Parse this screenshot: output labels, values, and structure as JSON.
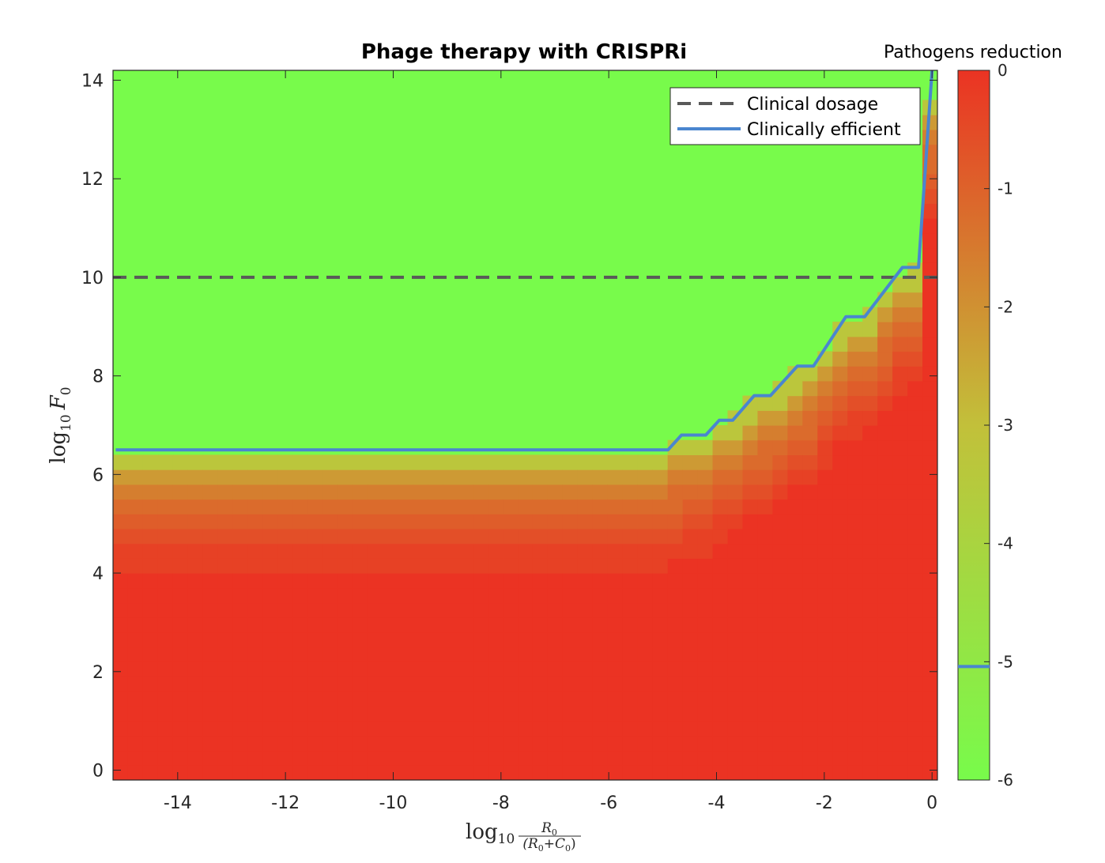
{
  "chart_data": {
    "type": "heatmap",
    "title": "Phage therapy with CRISPRi",
    "xlabel": {
      "prefix": "log",
      "sub": "10",
      "num": "R",
      "num_sub": "0",
      "den": "(R",
      "den_sub1": "0",
      "den_mid": "+C",
      "den_sub2": "0",
      "den_end": ")"
    },
    "ylabel": {
      "prefix": "log",
      "sub": "10",
      "var": "F",
      "var_sub": "0"
    },
    "xlim": [
      -15.2,
      0.1
    ],
    "ylim": [
      -0.2,
      14.2
    ],
    "xticks": [
      -14,
      -12,
      -10,
      -8,
      -6,
      -4,
      -2,
      0
    ],
    "yticks": [
      0,
      2,
      4,
      6,
      8,
      10,
      12,
      14
    ],
    "colorbar": {
      "title": "Pathogens reduction",
      "range": [
        -6,
        0
      ],
      "ticks": [
        0,
        -1,
        -2,
        -3,
        -4,
        -5,
        -6
      ],
      "colors": {
        "low": "#78fb4b",
        "mid": "#c2c03a",
        "high": "#eb3323"
      },
      "threshold": -5
    },
    "grid": false,
    "legend": {
      "placement": "top-right",
      "entries": [
        {
          "label": "Clinical dosage",
          "style": "dashed",
          "color": "#595959"
        },
        {
          "label": "Clinically efficient",
          "style": "solid",
          "color": "#4a86cf"
        }
      ]
    },
    "clinical_dosage_y": 10,
    "efficient_boundary": {
      "x": [
        -15.15,
        -4.9,
        -4.65,
        -4.2,
        -3.95,
        -3.7,
        -3.3,
        -3.0,
        -2.5,
        -2.2,
        -1.6,
        -1.25,
        -0.55,
        -0.25,
        0
      ],
      "y": [
        6.5,
        6.5,
        6.8,
        6.8,
        7.1,
        7.1,
        7.6,
        7.6,
        8.2,
        8.2,
        9.2,
        9.2,
        10.2,
        10.2,
        14.2
      ]
    },
    "heatmap_summary": {
      "uniform_region": {
        "x_max": -5.0,
        "bands": [
          {
            "y": [
              6.3,
              6.7
            ],
            "value": -3.3
          },
          {
            "y": [
              6.0,
              6.3
            ],
            "value": -2.2
          },
          {
            "y": [
              5.7,
              6.0
            ],
            "value": -1.6
          },
          {
            "y": [
              5.3,
              5.7
            ],
            "value": -1.2
          },
          {
            "y": [
              5.0,
              5.3
            ],
            "value": -0.9
          },
          {
            "y": [
              4.7,
              5.0
            ],
            "value": -0.6
          },
          {
            "y": [
              4.3,
              4.7
            ],
            "value": -0.3
          }
        ]
      },
      "clinically_efficient_above": -5
    }
  }
}
